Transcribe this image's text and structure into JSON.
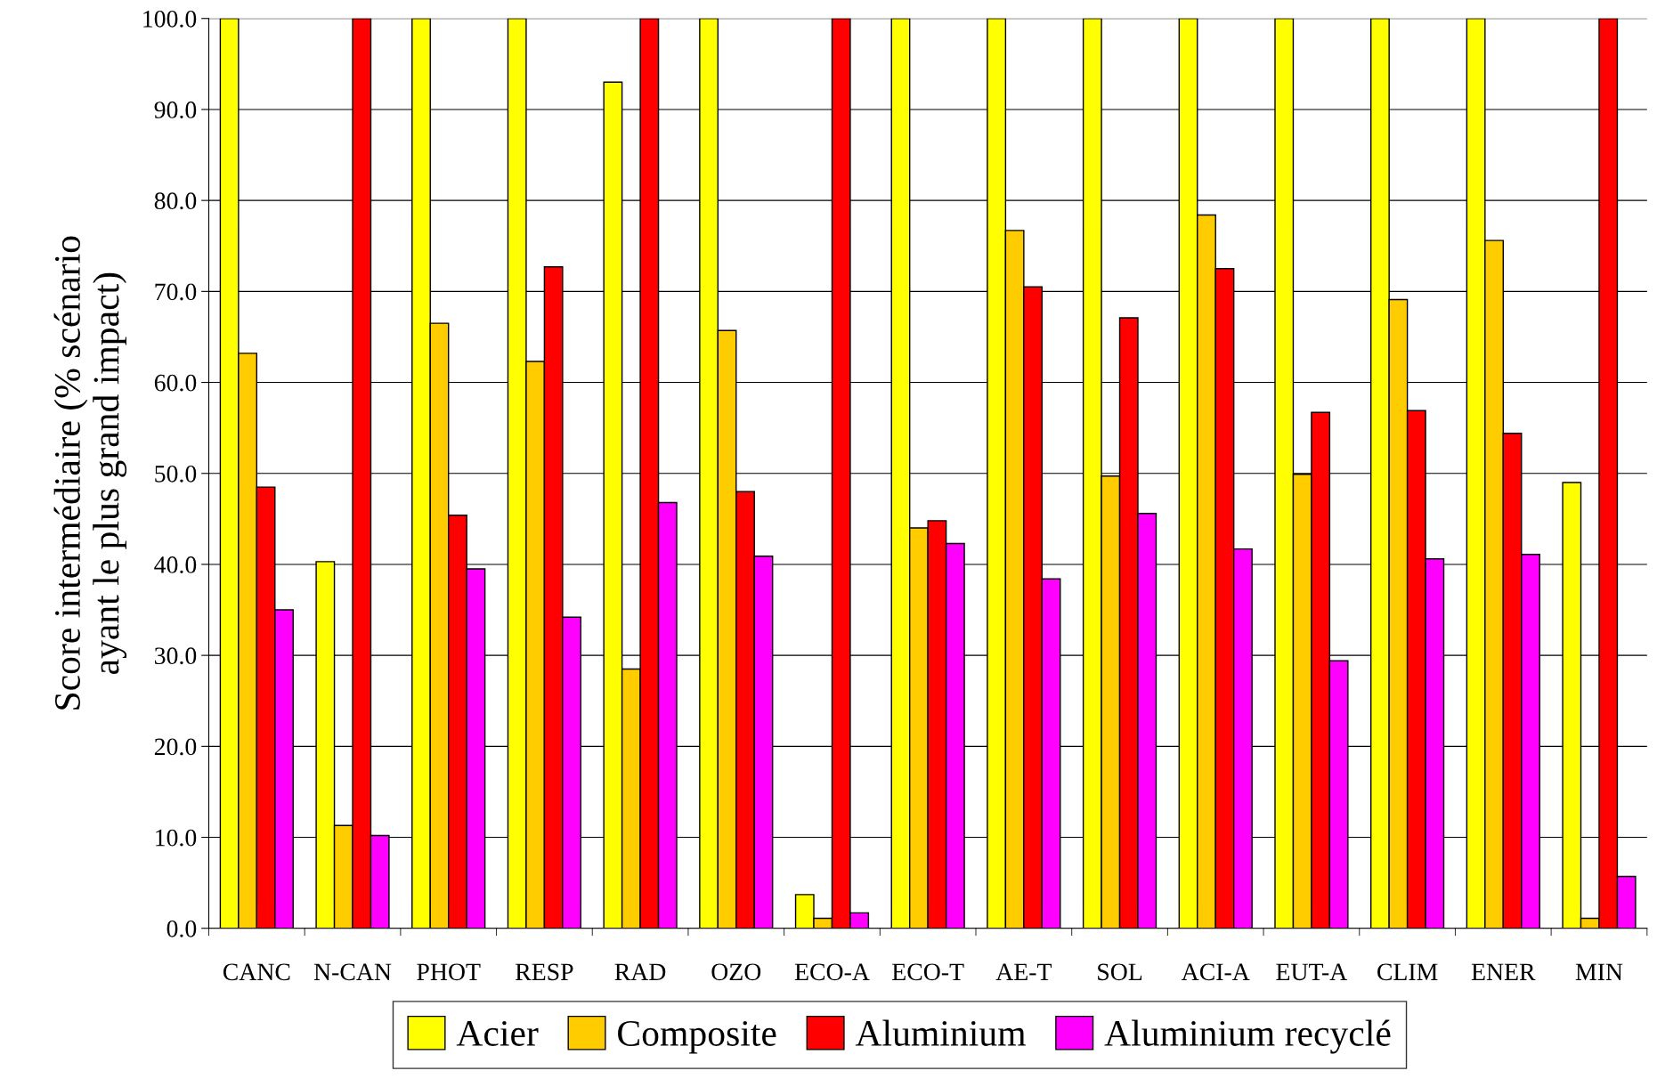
{
  "chart_data": {
    "type": "bar",
    "ylabel": "Score intermédiaire (% scénario\nayant le plus grand impact)",
    "categories": [
      "CANC",
      "N-CAN",
      "PHOT",
      "RESP",
      "RAD",
      "OZO",
      "ECO-A",
      "ECO-T",
      "AE-T",
      "SOL",
      "ACI-A",
      "EUT-A",
      "CLIM",
      "ENER",
      "MIN"
    ],
    "series": [
      {
        "name": "Acier",
        "color": "#ffff00",
        "values": [
          100,
          40.3,
          100,
          100,
          93.0,
          100,
          3.7,
          100,
          100,
          100,
          100,
          100,
          100,
          100,
          49.0
        ]
      },
      {
        "name": "Composite",
        "color": "#ffcc00",
        "values": [
          63.2,
          11.3,
          66.5,
          62.3,
          28.5,
          65.7,
          1.1,
          44.0,
          76.7,
          49.7,
          78.4,
          49.9,
          69.1,
          75.6,
          1.1
        ]
      },
      {
        "name": "Aluminium",
        "color": "#ff0000",
        "values": [
          48.5,
          100,
          45.4,
          72.7,
          100,
          48.0,
          100,
          44.8,
          70.5,
          67.1,
          72.5,
          56.7,
          56.9,
          54.4,
          100
        ]
      },
      {
        "name": "Aluminium recyclé",
        "color": "#ff00ff",
        "values": [
          35.0,
          10.2,
          39.5,
          34.2,
          46.8,
          40.9,
          1.7,
          42.3,
          38.4,
          45.6,
          41.7,
          29.4,
          40.6,
          41.1,
          5.7
        ]
      }
    ],
    "ylim": [
      0,
      100
    ],
    "yticks": [
      {
        "value": 0,
        "label": "0.0"
      },
      {
        "value": 10,
        "label": "10.0"
      },
      {
        "value": 20,
        "label": "20.0"
      },
      {
        "value": 30,
        "label": "30.0"
      },
      {
        "value": 40,
        "label": "40.0"
      },
      {
        "value": 50,
        "label": "50.0"
      },
      {
        "value": 60,
        "label": "60.0"
      },
      {
        "value": 70,
        "label": "70.0"
      },
      {
        "value": 80,
        "label": "80.0"
      },
      {
        "value": 90,
        "label": "90.0"
      },
      {
        "value": 100,
        "label": "100.0"
      }
    ],
    "grid": "y",
    "legend": "bottom"
  }
}
